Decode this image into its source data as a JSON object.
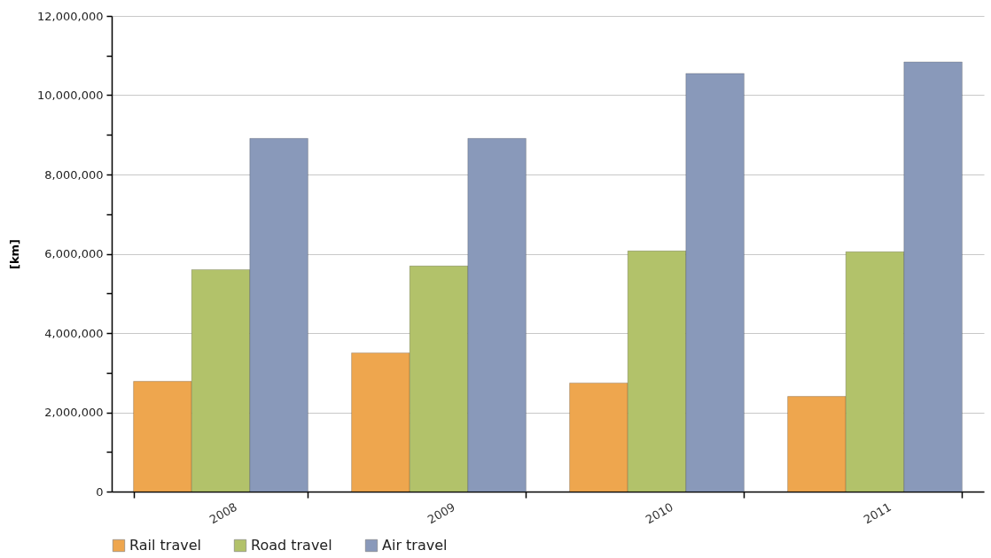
{
  "chart_data": {
    "type": "bar",
    "ylabel": "[km]",
    "categories": [
      "2008",
      "2009",
      "2010",
      "2011"
    ],
    "series": [
      {
        "name": "Rail travel",
        "color": "#eea64e",
        "values": [
          2780000,
          3500000,
          2740000,
          2400000
        ]
      },
      {
        "name": "Road travel",
        "color": "#b2c26a",
        "values": [
          5600000,
          5690000,
          6070000,
          6050000
        ]
      },
      {
        "name": "Air travel",
        "color": "#8999ba",
        "values": [
          8910000,
          8910000,
          10550000,
          10840000
        ]
      }
    ],
    "ylim": [
      0,
      12000000
    ],
    "yticks": [
      0,
      {
        "value": 1000000,
        "label": null
      },
      {
        "value": 2000000,
        "label": "2,000,000"
      },
      {
        "value": 3000000,
        "label": null
      },
      {
        "value": 4000000,
        "label": "4,000,000"
      },
      {
        "value": 5000000,
        "label": null
      },
      {
        "value": 6000000,
        "label": "6,000,000"
      },
      {
        "value": 7000000,
        "label": null
      },
      {
        "value": 8000000,
        "label": "8,000,000"
      },
      {
        "value": 9000000,
        "label": null
      },
      {
        "value": 10000000,
        "label": "10,000,000"
      },
      {
        "value": 11000000,
        "label": null
      },
      {
        "value": 12000000,
        "label": "12,000,000"
      }
    ],
    "grid": "y",
    "legend": "bottom"
  }
}
